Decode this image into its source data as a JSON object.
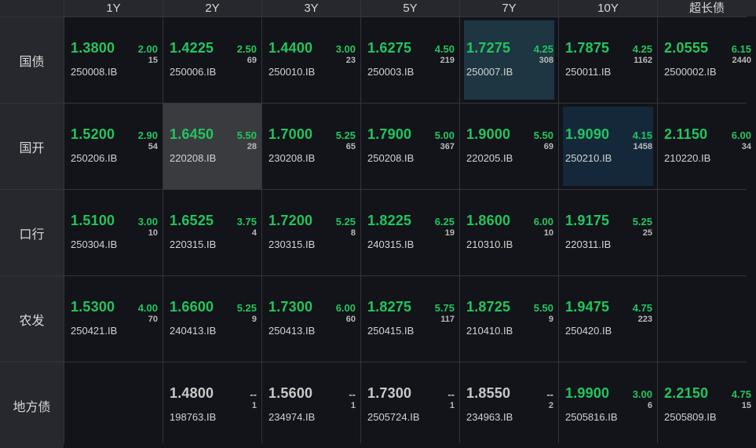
{
  "columns": [
    "1Y",
    "2Y",
    "3Y",
    "5Y",
    "7Y",
    "10Y",
    "超长债"
  ],
  "colors": {
    "up": "#22c55e",
    "neutral": "#c9c9c9",
    "highlight_teal": "#1e3642",
    "highlight_navy": "#15283a",
    "highlight_gray": "#3a3b3e"
  },
  "rows": [
    {
      "label": "国债",
      "cells": [
        {
          "price": "1.3800",
          "coupon": "2.00",
          "vol": "15",
          "code": "250008.IB",
          "tone": "green",
          "hl": ""
        },
        {
          "price": "1.4225",
          "coupon": "2.50",
          "vol": "69",
          "code": "250006.IB",
          "tone": "green",
          "hl": ""
        },
        {
          "price": "1.4400",
          "coupon": "3.00",
          "vol": "23",
          "code": "250010.IB",
          "tone": "green",
          "hl": ""
        },
        {
          "price": "1.6275",
          "coupon": "4.50",
          "vol": "219",
          "code": "250003.IB",
          "tone": "green",
          "hl": ""
        },
        {
          "price": "1.7275",
          "coupon": "4.25",
          "vol": "308",
          "code": "250007.IB",
          "tone": "green",
          "hl": "teal"
        },
        {
          "price": "1.7875",
          "coupon": "4.25",
          "vol": "1162",
          "code": "250011.IB",
          "tone": "green",
          "hl": ""
        },
        {
          "price": "2.0555",
          "coupon": "6.15",
          "vol": "2440",
          "code": "2500002.IB",
          "tone": "green",
          "hl": ""
        }
      ]
    },
    {
      "label": "国开",
      "cells": [
        {
          "price": "1.5200",
          "coupon": "2.90",
          "vol": "54",
          "code": "250206.IB",
          "tone": "green",
          "hl": ""
        },
        {
          "price": "1.6450",
          "coupon": "5.50",
          "vol": "28",
          "code": "220208.IB",
          "tone": "green",
          "hl": "gray"
        },
        {
          "price": "1.7000",
          "coupon": "5.25",
          "vol": "65",
          "code": "230208.IB",
          "tone": "green",
          "hl": ""
        },
        {
          "price": "1.7900",
          "coupon": "5.00",
          "vol": "367",
          "code": "250208.IB",
          "tone": "green",
          "hl": ""
        },
        {
          "price": "1.9000",
          "coupon": "5.50",
          "vol": "69",
          "code": "220205.IB",
          "tone": "green",
          "hl": ""
        },
        {
          "price": "1.9090",
          "coupon": "4.15",
          "vol": "1458",
          "code": "250210.IB",
          "tone": "green",
          "hl": "navy"
        },
        {
          "price": "2.1150",
          "coupon": "6.00",
          "vol": "34",
          "code": "210220.IB",
          "tone": "green",
          "hl": ""
        }
      ]
    },
    {
      "label": "口行",
      "cells": [
        {
          "price": "1.5100",
          "coupon": "3.00",
          "vol": "10",
          "code": "250304.IB",
          "tone": "green",
          "hl": ""
        },
        {
          "price": "1.6525",
          "coupon": "3.75",
          "vol": "4",
          "code": "220315.IB",
          "tone": "green",
          "hl": ""
        },
        {
          "price": "1.7200",
          "coupon": "5.25",
          "vol": "8",
          "code": "230315.IB",
          "tone": "green",
          "hl": ""
        },
        {
          "price": "1.8225",
          "coupon": "6.25",
          "vol": "19",
          "code": "240315.IB",
          "tone": "green",
          "hl": ""
        },
        {
          "price": "1.8600",
          "coupon": "6.00",
          "vol": "10",
          "code": "210310.IB",
          "tone": "green",
          "hl": ""
        },
        {
          "price": "1.9175",
          "coupon": "5.25",
          "vol": "25",
          "code": "220311.IB",
          "tone": "green",
          "hl": ""
        },
        null
      ]
    },
    {
      "label": "农发",
      "cells": [
        {
          "price": "1.5300",
          "coupon": "4.00",
          "vol": "70",
          "code": "250421.IB",
          "tone": "green",
          "hl": ""
        },
        {
          "price": "1.6600",
          "coupon": "5.25",
          "vol": "9",
          "code": "240413.IB",
          "tone": "green",
          "hl": ""
        },
        {
          "price": "1.7300",
          "coupon": "6.00",
          "vol": "60",
          "code": "250413.IB",
          "tone": "green",
          "hl": ""
        },
        {
          "price": "1.8275",
          "coupon": "5.75",
          "vol": "117",
          "code": "250415.IB",
          "tone": "green",
          "hl": ""
        },
        {
          "price": "1.8725",
          "coupon": "5.50",
          "vol": "9",
          "code": "210410.IB",
          "tone": "green",
          "hl": ""
        },
        {
          "price": "1.9475",
          "coupon": "4.75",
          "vol": "223",
          "code": "250420.IB",
          "tone": "green",
          "hl": ""
        },
        null
      ]
    },
    {
      "label": "地方债",
      "cells": [
        null,
        {
          "price": "1.4800",
          "coupon": "--",
          "vol": "1",
          "code": "198763.IB",
          "tone": "grey",
          "hl": ""
        },
        {
          "price": "1.5600",
          "coupon": "--",
          "vol": "1",
          "code": "234974.IB",
          "tone": "grey",
          "hl": ""
        },
        {
          "price": "1.7300",
          "coupon": "--",
          "vol": "1",
          "code": "2505724.IB",
          "tone": "grey",
          "hl": ""
        },
        {
          "price": "1.8550",
          "coupon": "--",
          "vol": "2",
          "code": "234963.IB",
          "tone": "grey",
          "hl": ""
        },
        {
          "price": "1.9900",
          "coupon": "3.00",
          "vol": "6",
          "code": "2505816.IB",
          "tone": "green",
          "hl": ""
        },
        {
          "price": "2.2150",
          "coupon": "4.75",
          "vol": "15",
          "code": "2505809.IB",
          "tone": "green",
          "hl": ""
        }
      ]
    }
  ]
}
